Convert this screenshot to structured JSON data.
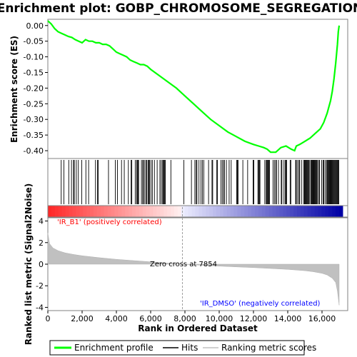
{
  "chart_data": {
    "type": "line",
    "title": "Enrichment plot: GOBP_CHROMOSOME_SEGREGATION",
    "xlabel": "Rank in Ordered Dataset",
    "ylabel_top": "Enrichment score (ES)",
    "ylabel_bottom": "Ranked list metric (Signal2Noise)",
    "xlim": [
      0,
      17500
    ],
    "x_ticks": [
      0,
      2000,
      4000,
      6000,
      8000,
      10000,
      12000,
      14000,
      16000
    ],
    "x_tick_labels": [
      "0",
      "2,000",
      "4,000",
      "6,000",
      "8,000",
      "10,000",
      "12,000",
      "14,000",
      "16,000"
    ],
    "es_ylim": [
      -0.425,
      0.02
    ],
    "es_ticks": [
      0.0,
      -0.05,
      -0.1,
      -0.15,
      -0.2,
      -0.25,
      -0.3,
      -0.35,
      -0.4
    ],
    "es_tick_labels": [
      "0.00",
      "-0.05",
      "-0.10",
      "-0.15",
      "-0.20",
      "-0.25",
      "-0.30",
      "-0.35",
      "-0.40"
    ],
    "metric_ylim": [
      -4.3,
      4.3
    ],
    "metric_ticks": [
      4,
      2,
      0,
      -2,
      -4
    ],
    "metric_tick_labels": [
      "4",
      "2",
      "0",
      "-2",
      "-4"
    ],
    "series": [
      {
        "name": "Enrichment profile",
        "color": "#00ff00",
        "x": [
          0,
          200,
          400,
          600,
          800,
          1000,
          1200,
          1400,
          1600,
          1800,
          2000,
          2200,
          2400,
          2600,
          2800,
          3000,
          3200,
          3400,
          3600,
          3800,
          4000,
          4200,
          4400,
          4600,
          4800,
          5000,
          5200,
          5400,
          5600,
          5800,
          6000,
          6500,
          7000,
          7500,
          8000,
          8500,
          9000,
          9500,
          10000,
          10500,
          11000,
          11500,
          12000,
          12300,
          12600,
          12800,
          13000,
          13300,
          13600,
          13900,
          14200,
          14400,
          14500,
          14700,
          15000,
          15300,
          15600,
          15900,
          16100,
          16300,
          16500,
          16600,
          16700,
          16800,
          16900,
          16950,
          17000
        ],
        "y": [
          0.015,
          0.005,
          -0.01,
          -0.02,
          -0.025,
          -0.03,
          -0.035,
          -0.038,
          -0.045,
          -0.05,
          -0.055,
          -0.045,
          -0.05,
          -0.05,
          -0.055,
          -0.055,
          -0.06,
          -0.06,
          -0.065,
          -0.075,
          -0.085,
          -0.09,
          -0.095,
          -0.1,
          -0.11,
          -0.115,
          -0.12,
          -0.125,
          -0.125,
          -0.13,
          -0.14,
          -0.16,
          -0.18,
          -0.2,
          -0.225,
          -0.25,
          -0.275,
          -0.3,
          -0.32,
          -0.34,
          -0.355,
          -0.37,
          -0.38,
          -0.385,
          -0.39,
          -0.395,
          -0.405,
          -0.405,
          -0.39,
          -0.385,
          -0.395,
          -0.4,
          -0.385,
          -0.38,
          -0.37,
          -0.36,
          -0.345,
          -0.33,
          -0.31,
          -0.28,
          -0.24,
          -0.21,
          -0.17,
          -0.12,
          -0.06,
          -0.02,
          0.0
        ]
      }
    ],
    "metric_profile": {
      "name": "Ranking metric scores",
      "color": "#c0c0c0",
      "x": [
        0,
        100,
        300,
        600,
        1000,
        1500,
        2000,
        3000,
        4000,
        5000,
        6000,
        7000,
        7854,
        9000,
        10000,
        11000,
        12000,
        13000,
        14000,
        15000,
        15500,
        16000,
        16300,
        16600,
        16800,
        16900,
        17000
      ],
      "y": [
        2.9,
        1.9,
        1.5,
        1.25,
        1.05,
        0.9,
        0.78,
        0.6,
        0.45,
        0.33,
        0.22,
        0.1,
        0.0,
        -0.1,
        -0.18,
        -0.25,
        -0.32,
        -0.4,
        -0.48,
        -0.6,
        -0.7,
        -0.85,
        -1.0,
        -1.3,
        -1.7,
        -2.5,
        -3.8
      ]
    },
    "hits_description": "vertical black tick marks for gene set members along ranked list",
    "zero_cross_label": "Zero cross at 7854",
    "zero_cross_x": 7854,
    "pos_label": "'IR_B1' (positively correlated)",
    "neg_label": "'IR_DMSO' (negatively correlated)",
    "pos_color": "#ff0000",
    "neg_color": "#0000ff",
    "legend": {
      "placement": "bottom",
      "items": [
        {
          "label": "Enrichment profile",
          "color": "#00ff00"
        },
        {
          "label": "Hits",
          "color": "#000000"
        },
        {
          "label": "Ranking metric scores",
          "color": "#c0c0c0"
        }
      ]
    }
  }
}
